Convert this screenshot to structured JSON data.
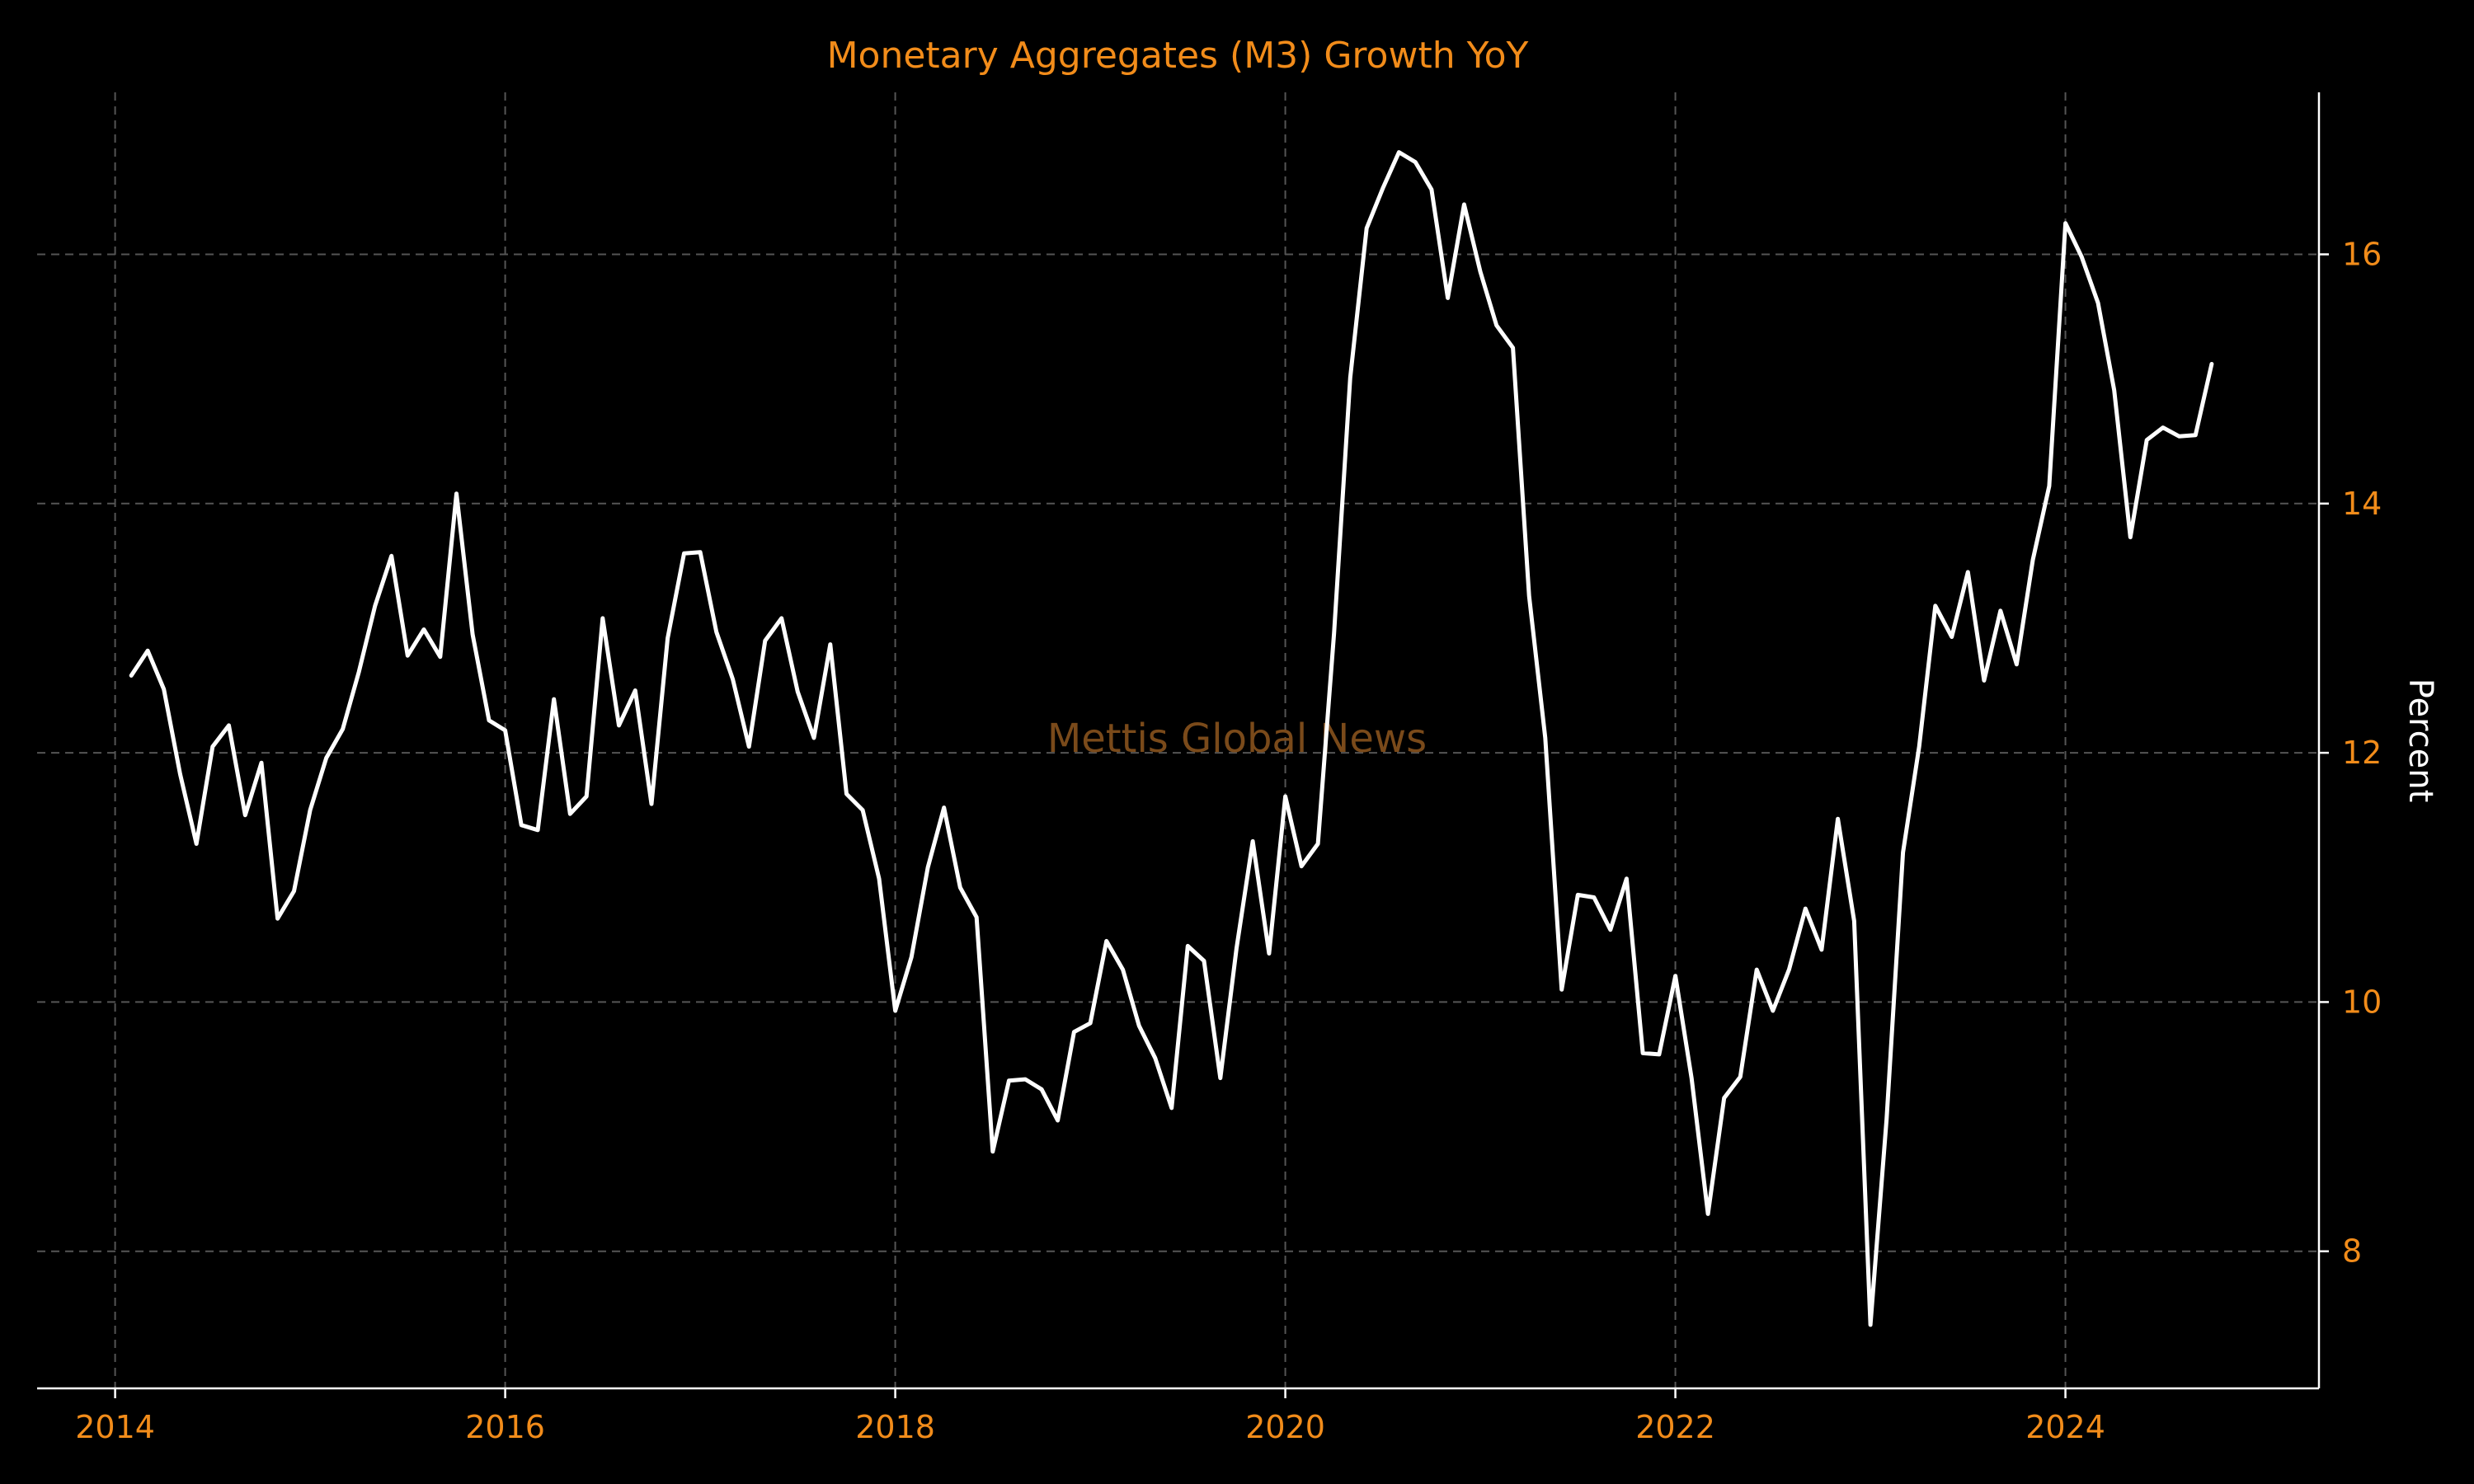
{
  "chart_data": {
    "type": "line",
    "title": "Monetary Aggregates (M3) Growth YoY",
    "xlabel": "",
    "ylabel": "Percent",
    "watermark": "Mettis Global News",
    "xlim": [
      2013.6,
      2025.3
    ],
    "ylim": [
      6.9,
      17.3
    ],
    "x_ticks": [
      2014,
      2016,
      2018,
      2020,
      2022,
      2024
    ],
    "y_ticks": [
      8,
      10,
      12,
      14,
      16
    ],
    "y_axis_side": "right",
    "grid": true,
    "colors": {
      "text": "#f28c1a",
      "line": "#ffffff",
      "background": "#000000",
      "grid": "#555555",
      "watermark": "#7a4a1a"
    },
    "series": [
      {
        "x": [
          2014.083,
          2014.167,
          2014.25,
          2014.333,
          2014.417,
          2014.5,
          2014.583,
          2014.667,
          2014.75,
          2014.833,
          2014.917,
          2015.0,
          2015.083,
          2015.167,
          2015.25,
          2015.333,
          2015.417,
          2015.5,
          2015.583,
          2015.667,
          2015.75,
          2015.833,
          2015.917,
          2016.0,
          2016.083,
          2016.167,
          2016.25,
          2016.333,
          2016.417,
          2016.5,
          2016.583,
          2016.667,
          2016.75,
          2016.833,
          2016.917,
          2017.0,
          2017.083,
          2017.167,
          2017.25,
          2017.333,
          2017.417,
          2017.5,
          2017.583,
          2017.667,
          2017.75,
          2017.833,
          2017.917,
          2018.0,
          2018.083,
          2018.167,
          2018.25,
          2018.333,
          2018.417,
          2018.5,
          2018.583,
          2018.667,
          2018.75,
          2018.833,
          2018.917,
          2019.0,
          2019.083,
          2019.167,
          2019.25,
          2019.333,
          2019.417,
          2019.5,
          2019.583,
          2019.667,
          2019.75,
          2019.833,
          2019.917,
          2020.0,
          2020.083,
          2020.167,
          2020.25,
          2020.333,
          2020.417,
          2020.5,
          2020.583,
          2020.667,
          2020.75,
          2020.833,
          2020.917,
          2021.0,
          2021.083,
          2021.167,
          2021.25,
          2021.333,
          2021.417,
          2021.5,
          2021.583,
          2021.667,
          2021.75,
          2021.833,
          2021.917,
          2022.0,
          2022.083,
          2022.167,
          2022.25,
          2022.333,
          2022.417,
          2022.5,
          2022.583,
          2022.667,
          2022.75,
          2022.833,
          2022.917,
          2023.0,
          2023.083,
          2023.167,
          2023.25,
          2023.333,
          2023.417,
          2023.5,
          2023.583,
          2023.667,
          2023.75,
          2023.833,
          2023.917,
          2024.0,
          2024.083,
          2024.167,
          2024.25,
          2024.333,
          2024.417,
          2024.5,
          2024.583,
          2024.667,
          2024.75
        ],
        "values": [
          12.62,
          12.82,
          12.51,
          11.83,
          11.27,
          12.05,
          12.22,
          11.5,
          11.92,
          10.67,
          10.89,
          11.54,
          11.96,
          12.19,
          12.65,
          13.18,
          13.58,
          12.78,
          12.99,
          12.77,
          14.08,
          12.95,
          12.26,
          12.18,
          11.42,
          11.38,
          12.43,
          11.51,
          11.65,
          13.08,
          12.22,
          12.5,
          11.59,
          12.92,
          13.6,
          13.61,
          12.97,
          12.59,
          12.05,
          12.9,
          13.08,
          12.49,
          12.12,
          12.87,
          11.67,
          11.54,
          10.99,
          9.93,
          10.36,
          11.08,
          11.56,
          10.92,
          10.68,
          8.8,
          9.37,
          9.38,
          9.3,
          9.05,
          9.76,
          9.83,
          10.49,
          10.26,
          9.81,
          9.55,
          9.15,
          10.45,
          10.33,
          9.39,
          10.43,
          11.29,
          10.39,
          11.65,
          11.09,
          11.27,
          12.96,
          15.01,
          16.21,
          16.53,
          16.82,
          16.74,
          16.52,
          15.65,
          16.4,
          15.86,
          15.43,
          15.25,
          13.26,
          12.12,
          10.1,
          10.86,
          10.84,
          10.58,
          10.99,
          9.59,
          9.58,
          10.21,
          9.39,
          8.3,
          9.23,
          9.4,
          10.26,
          9.93,
          10.26,
          10.75,
          10.42,
          11.47,
          10.65,
          7.41,
          9.06,
          11.2,
          12.05,
          13.18,
          12.93,
          13.45,
          12.58,
          13.14,
          12.71,
          13.55,
          14.14,
          16.25,
          15.98,
          15.61,
          14.91,
          13.73,
          14.51,
          14.61,
          14.54,
          14.55,
          15.12
        ]
      }
    ]
  }
}
